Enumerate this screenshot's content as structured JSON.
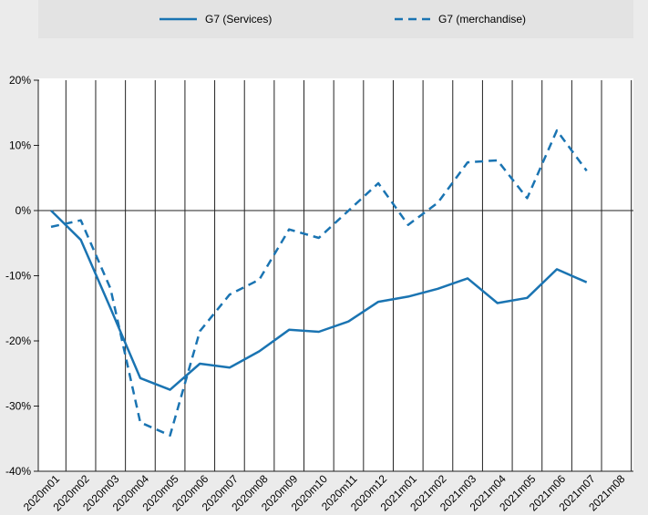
{
  "chart_data": {
    "type": "line",
    "title": "",
    "xlabel": "",
    "ylabel": "",
    "categories": [
      "2020m01",
      "2020m02",
      "2020m03",
      "2020m04",
      "2020m05",
      "2020m06",
      "2020m07",
      "2020m08",
      "2020m09",
      "2020m10",
      "2020m11",
      "2020m12",
      "2021m01",
      "2021m02",
      "2021m03",
      "2021m04",
      "2021m05",
      "2021m06",
      "2021m07",
      "2021m08"
    ],
    "ylim": [
      -40,
      20
    ],
    "yticks": [
      20,
      10,
      0,
      -10,
      -20,
      -30,
      -40
    ],
    "ytick_labels": [
      "20%",
      "10%",
      "0%",
      "-10%",
      "-20%",
      "-30%",
      "-40%"
    ],
    "grid": "vertical",
    "legend_position": "top",
    "colors": {
      "series": "#1a74b2",
      "background": "#ebebeb",
      "legend_background": "#e3e3e3"
    },
    "series": [
      {
        "name": "G7 (Services)",
        "style": "solid",
        "values": [
          0,
          -4.5,
          -15,
          -25.7,
          -27.5,
          -23.5,
          -24.1,
          -21.6,
          -18.3,
          -18.6,
          -17,
          -14,
          -13.2,
          -12,
          -10.4,
          -14.2,
          -13.4,
          -9,
          -11,
          null
        ]
      },
      {
        "name": "G7 (merchandise)",
        "style": "dashed",
        "values": [
          -2.5,
          -1.5,
          -12,
          -32.5,
          -34.5,
          -18.5,
          -12.9,
          -10.6,
          -2.9,
          -4.2,
          0,
          4.2,
          -2.2,
          1.2,
          7.4,
          7.7,
          1.9,
          12.3,
          6.1,
          null
        ]
      }
    ]
  }
}
